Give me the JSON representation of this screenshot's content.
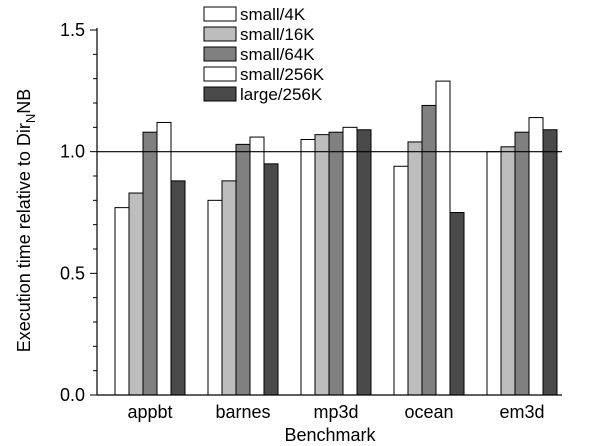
{
  "chart_data": {
    "type": "bar",
    "xlabel": "Benchmark",
    "ylabel": "Execution time relative to Dir",
    "ylabel_subscript": "N",
    "ylabel_suffix": "NB",
    "categories": [
      "appbt",
      "barnes",
      "mp3d",
      "ocean",
      "em3d"
    ],
    "ylim": [
      0.0,
      1.5
    ],
    "yticks": [
      "0.0",
      "0.5",
      "1.0",
      "1.5"
    ],
    "reference_line": 1.0,
    "grid": false,
    "legend_position": "top-center",
    "series": [
      {
        "name": "small/4K",
        "color": "#ffffff",
        "values": [
          0.77,
          0.8,
          1.05,
          0.94,
          1.0
        ]
      },
      {
        "name": "small/16K",
        "color": "#bdbdbd",
        "values": [
          0.83,
          0.88,
          1.07,
          1.04,
          1.02
        ]
      },
      {
        "name": "small/64K",
        "color": "#808080",
        "values": [
          1.08,
          1.03,
          1.08,
          1.19,
          1.08
        ]
      },
      {
        "name": "small/256K",
        "color": "#ffffff",
        "values": [
          1.12,
          1.06,
          1.1,
          1.29,
          1.14
        ]
      },
      {
        "name": "large/256K",
        "color": "#4a4a4a",
        "values": [
          0.88,
          0.95,
          1.09,
          0.75,
          1.09
        ]
      }
    ]
  }
}
